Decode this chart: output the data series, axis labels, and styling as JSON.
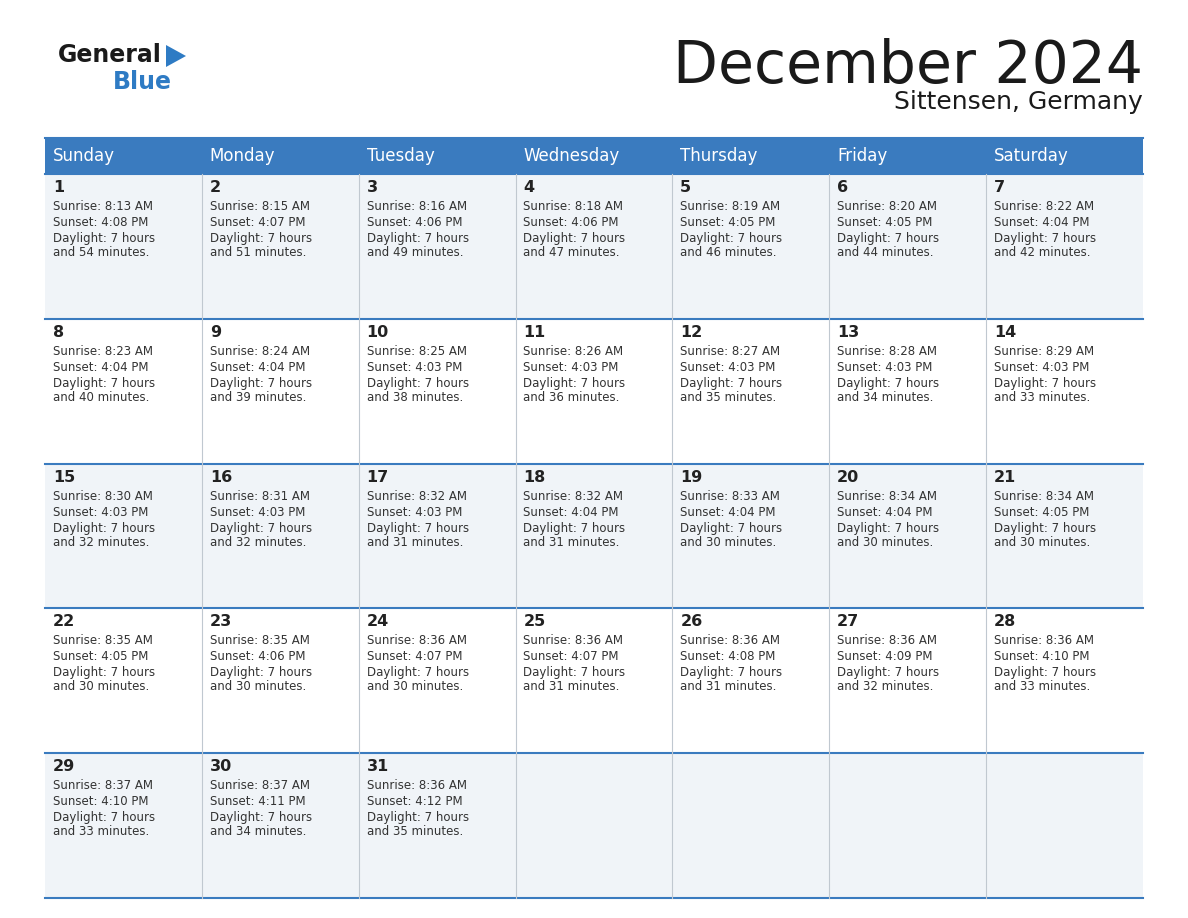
{
  "title": "December 2024",
  "subtitle": "Sittensen, Germany",
  "header_color": "#3a7bbf",
  "header_text_color": "#ffffff",
  "bg_color": "#ffffff",
  "day_names": [
    "Sunday",
    "Monday",
    "Tuesday",
    "Wednesday",
    "Thursday",
    "Friday",
    "Saturday"
  ],
  "days": [
    {
      "day": 1,
      "col": 0,
      "row": 0,
      "sunrise": "8:13 AM",
      "sunset": "4:08 PM",
      "daylight": "7 hours and 54 minutes."
    },
    {
      "day": 2,
      "col": 1,
      "row": 0,
      "sunrise": "8:15 AM",
      "sunset": "4:07 PM",
      "daylight": "7 hours and 51 minutes."
    },
    {
      "day": 3,
      "col": 2,
      "row": 0,
      "sunrise": "8:16 AM",
      "sunset": "4:06 PM",
      "daylight": "7 hours and 49 minutes."
    },
    {
      "day": 4,
      "col": 3,
      "row": 0,
      "sunrise": "8:18 AM",
      "sunset": "4:06 PM",
      "daylight": "7 hours and 47 minutes."
    },
    {
      "day": 5,
      "col": 4,
      "row": 0,
      "sunrise": "8:19 AM",
      "sunset": "4:05 PM",
      "daylight": "7 hours and 46 minutes."
    },
    {
      "day": 6,
      "col": 5,
      "row": 0,
      "sunrise": "8:20 AM",
      "sunset": "4:05 PM",
      "daylight": "7 hours and 44 minutes."
    },
    {
      "day": 7,
      "col": 6,
      "row": 0,
      "sunrise": "8:22 AM",
      "sunset": "4:04 PM",
      "daylight": "7 hours and 42 minutes."
    },
    {
      "day": 8,
      "col": 0,
      "row": 1,
      "sunrise": "8:23 AM",
      "sunset": "4:04 PM",
      "daylight": "7 hours and 40 minutes."
    },
    {
      "day": 9,
      "col": 1,
      "row": 1,
      "sunrise": "8:24 AM",
      "sunset": "4:04 PM",
      "daylight": "7 hours and 39 minutes."
    },
    {
      "day": 10,
      "col": 2,
      "row": 1,
      "sunrise": "8:25 AM",
      "sunset": "4:03 PM",
      "daylight": "7 hours and 38 minutes."
    },
    {
      "day": 11,
      "col": 3,
      "row": 1,
      "sunrise": "8:26 AM",
      "sunset": "4:03 PM",
      "daylight": "7 hours and 36 minutes."
    },
    {
      "day": 12,
      "col": 4,
      "row": 1,
      "sunrise": "8:27 AM",
      "sunset": "4:03 PM",
      "daylight": "7 hours and 35 minutes."
    },
    {
      "day": 13,
      "col": 5,
      "row": 1,
      "sunrise": "8:28 AM",
      "sunset": "4:03 PM",
      "daylight": "7 hours and 34 minutes."
    },
    {
      "day": 14,
      "col": 6,
      "row": 1,
      "sunrise": "8:29 AM",
      "sunset": "4:03 PM",
      "daylight": "7 hours and 33 minutes."
    },
    {
      "day": 15,
      "col": 0,
      "row": 2,
      "sunrise": "8:30 AM",
      "sunset": "4:03 PM",
      "daylight": "7 hours and 32 minutes."
    },
    {
      "day": 16,
      "col": 1,
      "row": 2,
      "sunrise": "8:31 AM",
      "sunset": "4:03 PM",
      "daylight": "7 hours and 32 minutes."
    },
    {
      "day": 17,
      "col": 2,
      "row": 2,
      "sunrise": "8:32 AM",
      "sunset": "4:03 PM",
      "daylight": "7 hours and 31 minutes."
    },
    {
      "day": 18,
      "col": 3,
      "row": 2,
      "sunrise": "8:32 AM",
      "sunset": "4:04 PM",
      "daylight": "7 hours and 31 minutes."
    },
    {
      "day": 19,
      "col": 4,
      "row": 2,
      "sunrise": "8:33 AM",
      "sunset": "4:04 PM",
      "daylight": "7 hours and 30 minutes."
    },
    {
      "day": 20,
      "col": 5,
      "row": 2,
      "sunrise": "8:34 AM",
      "sunset": "4:04 PM",
      "daylight": "7 hours and 30 minutes."
    },
    {
      "day": 21,
      "col": 6,
      "row": 2,
      "sunrise": "8:34 AM",
      "sunset": "4:05 PM",
      "daylight": "7 hours and 30 minutes."
    },
    {
      "day": 22,
      "col": 0,
      "row": 3,
      "sunrise": "8:35 AM",
      "sunset": "4:05 PM",
      "daylight": "7 hours and 30 minutes."
    },
    {
      "day": 23,
      "col": 1,
      "row": 3,
      "sunrise": "8:35 AM",
      "sunset": "4:06 PM",
      "daylight": "7 hours and 30 minutes."
    },
    {
      "day": 24,
      "col": 2,
      "row": 3,
      "sunrise": "8:36 AM",
      "sunset": "4:07 PM",
      "daylight": "7 hours and 30 minutes."
    },
    {
      "day": 25,
      "col": 3,
      "row": 3,
      "sunrise": "8:36 AM",
      "sunset": "4:07 PM",
      "daylight": "7 hours and 31 minutes."
    },
    {
      "day": 26,
      "col": 4,
      "row": 3,
      "sunrise": "8:36 AM",
      "sunset": "4:08 PM",
      "daylight": "7 hours and 31 minutes."
    },
    {
      "day": 27,
      "col": 5,
      "row": 3,
      "sunrise": "8:36 AM",
      "sunset": "4:09 PM",
      "daylight": "7 hours and 32 minutes."
    },
    {
      "day": 28,
      "col": 6,
      "row": 3,
      "sunrise": "8:36 AM",
      "sunset": "4:10 PM",
      "daylight": "7 hours and 33 minutes."
    },
    {
      "day": 29,
      "col": 0,
      "row": 4,
      "sunrise": "8:37 AM",
      "sunset": "4:10 PM",
      "daylight": "7 hours and 33 minutes."
    },
    {
      "day": 30,
      "col": 1,
      "row": 4,
      "sunrise": "8:37 AM",
      "sunset": "4:11 PM",
      "daylight": "7 hours and 34 minutes."
    },
    {
      "day": 31,
      "col": 2,
      "row": 4,
      "sunrise": "8:36 AM",
      "sunset": "4:12 PM",
      "daylight": "7 hours and 35 minutes."
    }
  ],
  "logo_general_color": "#1a1a1a",
  "logo_blue_color": "#2e7bc4",
  "logo_triangle_color": "#2e7bc4",
  "title_color": "#1a1a1a",
  "subtitle_color": "#1a1a1a",
  "cell_text_color": "#333333",
  "day_num_color": "#222222",
  "row_bg_colors": [
    "#f0f4f8",
    "#ffffff",
    "#f0f4f8",
    "#ffffff",
    "#f0f4f8"
  ],
  "divider_color": "#c0c8d0",
  "border_color": "#3a7bbf"
}
